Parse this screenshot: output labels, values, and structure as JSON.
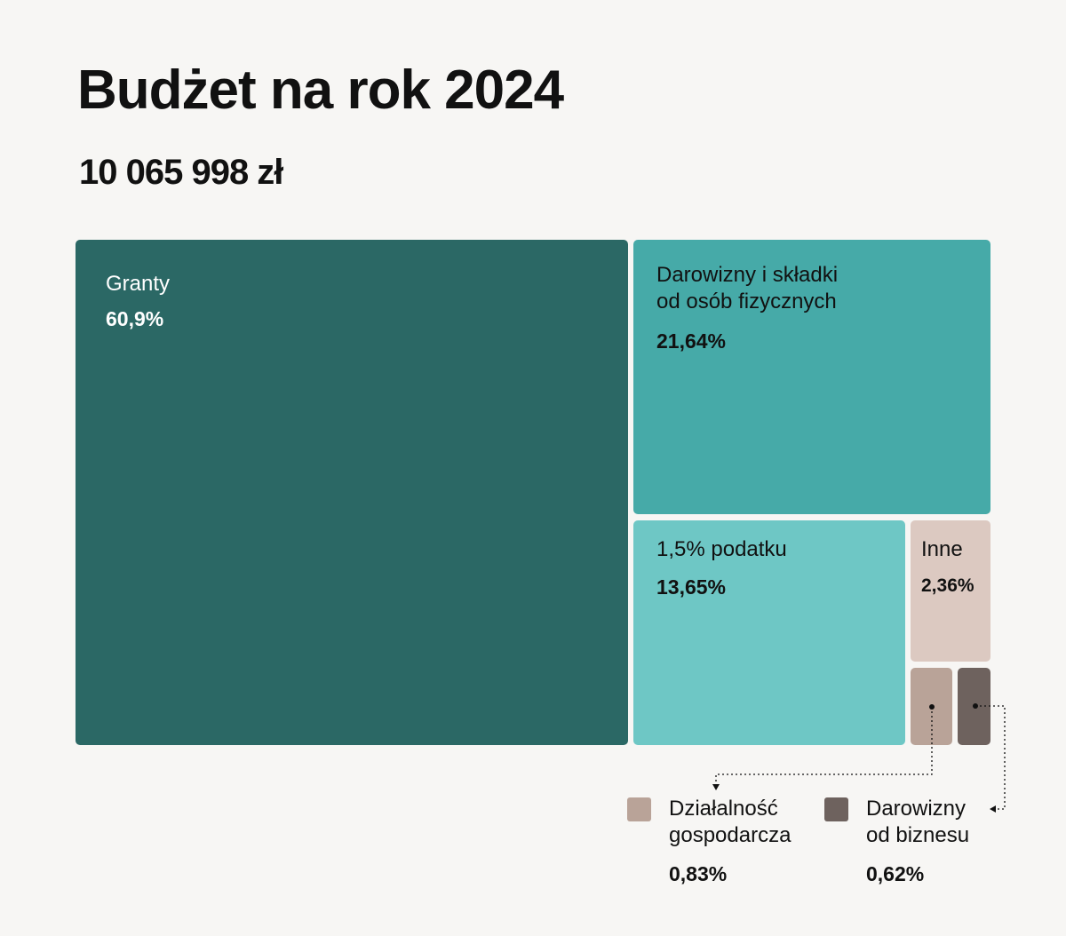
{
  "title": "Budżet na rok 2024",
  "subtitle": "10 065 998 zł",
  "chart_data": {
    "type": "treemap",
    "title": "Budżet na rok 2024",
    "total": "10 065 998 zł",
    "items": [
      {
        "label": "Granty",
        "value": 60.9,
        "display": "60,9%",
        "color": "#2b6865"
      },
      {
        "label": "Darowizny i składki\nod osób fizycznych",
        "value": 21.64,
        "display": "21,64%",
        "color": "#46aaa8"
      },
      {
        "label": "1,5% podatku",
        "value": 13.65,
        "display": "13,65%",
        "color": "#6ec7c5"
      },
      {
        "label": "Inne",
        "value": 2.36,
        "display": "2,36%",
        "color": "#dcc9c1"
      },
      {
        "label": "Działalność\ngospodarcza",
        "value": 0.83,
        "display": "0,83%",
        "color": "#b9a398"
      },
      {
        "label": "Darowizny\nod biznesu",
        "value": 0.62,
        "display": "0,62%",
        "color": "#6e625e"
      }
    ]
  }
}
